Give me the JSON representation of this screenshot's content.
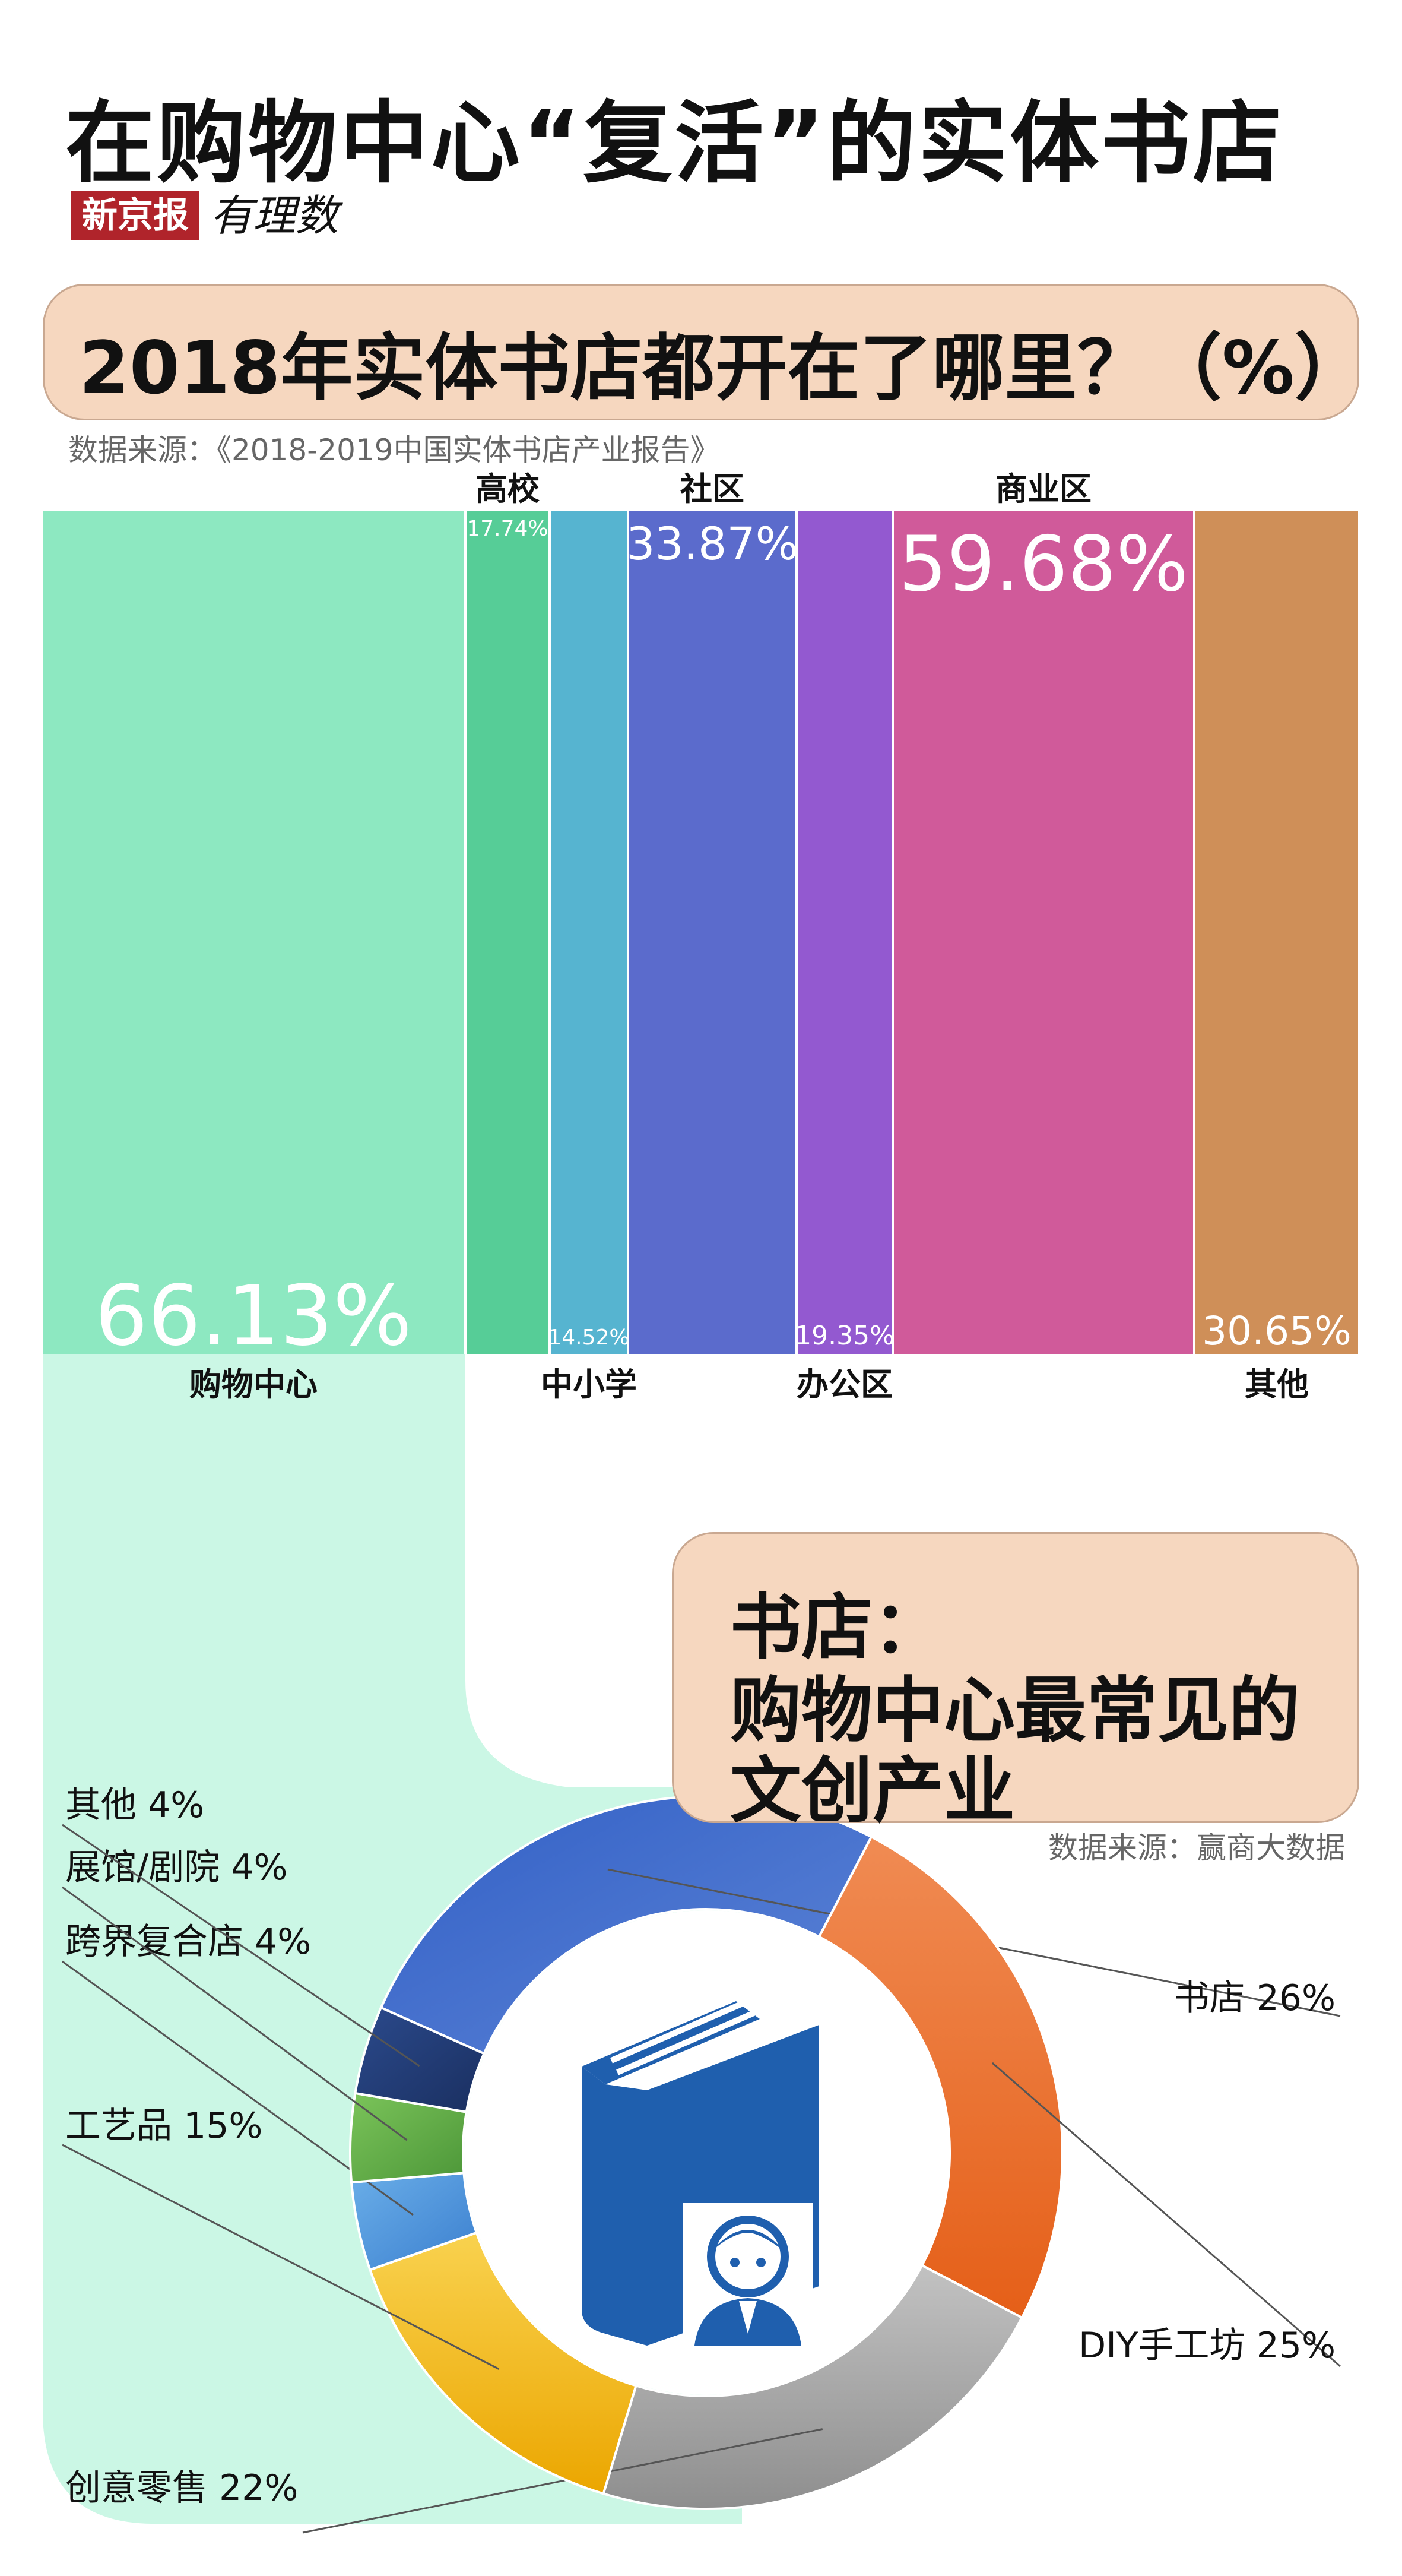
{
  "header": {
    "title": "在购物中心“复活”的实体书店",
    "logo_badge": "新京报",
    "logo_script": "有理数"
  },
  "section1": {
    "question": "2018年实体书店都开在了哪里？（%）",
    "source": "数据来源：《2018-2019中国实体书店产业报告》"
  },
  "callout": {
    "line1": "书店：",
    "line2": "购物中心最常见的",
    "line3": "文创产业",
    "source": "数据来源：赢商大数据"
  },
  "chart_data": [
    {
      "type": "bar",
      "title": "2018年实体书店都开在了哪里？（%）",
      "categories": [
        "购物中心",
        "高校",
        "中小学",
        "社区",
        "办公区",
        "商业区",
        "其他"
      ],
      "values": [
        66.13,
        17.74,
        14.52,
        33.87,
        19.35,
        59.68,
        30.65
      ],
      "value_labels": [
        "66.13%",
        "17.74%",
        "14.52%",
        "33.87%",
        "19.35%",
        "59.68%",
        "30.65%"
      ],
      "colors": [
        "#8de8c1",
        "#56cd97",
        "#56b4d0",
        "#5b6bcc",
        "#9359d0",
        "#d05a9a",
        "#cf8f58"
      ]
    },
    {
      "type": "pie",
      "categories": [
        "书店",
        "DIY手工坊",
        "创意零售",
        "工艺品",
        "跨界复合店",
        "展馆/剧院",
        "其他"
      ],
      "values": [
        26,
        25,
        22,
        15,
        4,
        4,
        4
      ],
      "labels": [
        "书店 26%",
        "DIY手工坊 25%",
        "创意零售 22%",
        "工艺品 15%",
        "跨界复合店 4%",
        "展馆/剧院 4%",
        "其他 4%"
      ],
      "colors": [
        "#3d6ccc",
        "#ef7a2e",
        "#a3a3a3",
        "#f5b90a",
        "#4e93dc",
        "#5caa44",
        "#233f7a"
      ],
      "center_icon": "book-reader-icon"
    }
  ]
}
